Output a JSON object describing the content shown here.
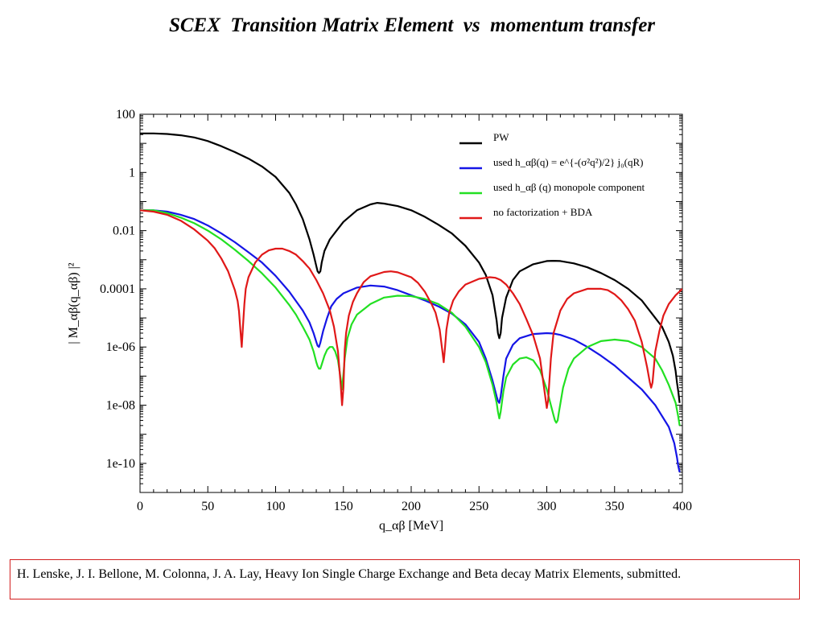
{
  "slide": {
    "title": "SCEX  Transition Matrix Element  vs  momentum transfer",
    "citation": "H. Lenske, J. I. Bellone, M. Colonna, J. A. Lay, Heavy Ion Single Charge Exchange and Beta decay Matrix Elements, submitted."
  },
  "chart_data": {
    "type": "line",
    "title": "",
    "xlabel": "q_αβ [MeV]",
    "ylabel": "| M_αβ(q_αβ) |²",
    "xlim": [
      0,
      400
    ],
    "ylim": [
      1e-11,
      100
    ],
    "yscale": "log",
    "grid": false,
    "legend_position": "top-right",
    "x_ticks": [
      0,
      50,
      100,
      150,
      200,
      250,
      300,
      350,
      400
    ],
    "x_tick_labels": [
      "0",
      "50",
      "100",
      "150",
      "200",
      "250",
      "300",
      "350",
      "400"
    ],
    "y_ticks": [
      100,
      1,
      0.01,
      0.0001,
      1e-06,
      1e-08,
      1e-10
    ],
    "y_tick_labels": [
      "100",
      "1",
      "0.01",
      "0.0001",
      "1e-06",
      "1e-08",
      "1e-10"
    ],
    "series": [
      {
        "name": "PW",
        "color": "#000000",
        "x": [
          0,
          10,
          20,
          30,
          40,
          50,
          60,
          70,
          80,
          90,
          100,
          110,
          115,
          120,
          125,
          128,
          130,
          131,
          132,
          133,
          134,
          136,
          140,
          145,
          150,
          160,
          170,
          175,
          180,
          190,
          200,
          210,
          220,
          230,
          240,
          250,
          255,
          260,
          263,
          264,
          265,
          266,
          267,
          270,
          275,
          280,
          290,
          300,
          305,
          310,
          320,
          330,
          340,
          350,
          360,
          370,
          380,
          385,
          390,
          393,
          395,
          396,
          397,
          398
        ],
        "values": [
          22,
          22,
          21,
          19,
          16,
          12,
          8,
          5,
          3,
          1.6,
          0.7,
          0.2,
          0.08,
          0.025,
          0.005,
          0.0015,
          0.0006,
          0.0004,
          0.00035,
          0.0004,
          0.0008,
          0.002,
          0.005,
          0.01,
          0.02,
          0.05,
          0.08,
          0.09,
          0.085,
          0.07,
          0.05,
          0.03,
          0.016,
          0.008,
          0.003,
          0.0008,
          0.0003,
          6e-05,
          8e-06,
          3e-06,
          2e-06,
          3e-06,
          1e-05,
          5e-05,
          0.0002,
          0.0004,
          0.0007,
          0.0009,
          0.00092,
          0.0009,
          0.00075,
          0.00055,
          0.00035,
          0.0002,
          0.0001,
          4e-05,
          1e-05,
          5e-06,
          1.5e-06,
          5e-07,
          1.5e-07,
          6e-08,
          3e-08,
          1.2e-08
        ]
      },
      {
        "name": "used h_αβ(q) = e^{-(σ²q²)/2} j₀(qR)",
        "color": "#1515e6",
        "x": [
          0,
          10,
          20,
          30,
          40,
          50,
          60,
          70,
          80,
          90,
          100,
          110,
          120,
          125,
          128,
          130,
          131,
          132,
          133,
          135,
          138,
          141,
          145,
          150,
          160,
          170,
          180,
          190,
          200,
          210,
          220,
          230,
          240,
          250,
          255,
          260,
          263,
          264,
          265,
          266,
          268,
          270,
          275,
          280,
          290,
          300,
          305,
          310,
          320,
          330,
          340,
          350,
          360,
          370,
          380,
          390,
          394,
          396,
          397,
          398
        ],
        "values": [
          0.05,
          0.05,
          0.045,
          0.035,
          0.025,
          0.015,
          0.008,
          0.004,
          0.0018,
          0.0008,
          0.00028,
          8e-05,
          1.8e-05,
          7e-06,
          3e-06,
          1.5e-06,
          1.1e-06,
          1e-06,
          1.4e-06,
          3.5e-06,
          1e-05,
          2.5e-05,
          4.5e-05,
          7e-05,
          0.00011,
          0.00013,
          0.00012,
          9e-05,
          6e-05,
          4e-05,
          2.5e-05,
          1.4e-05,
          6e-06,
          1.5e-06,
          4e-07,
          7e-08,
          2e-08,
          1.4e-08,
          1.2e-08,
          2e-08,
          1e-07,
          4e-07,
          1.2e-06,
          2e-06,
          2.8e-06,
          3e-06,
          2.9e-06,
          2.6e-06,
          1.8e-06,
          1e-06,
          5e-07,
          2.3e-07,
          9e-08,
          3.5e-08,
          1e-08,
          1.8e-09,
          5e-10,
          1.6e-10,
          8e-11,
          5e-11
        ]
      },
      {
        "name": "used h_αβ (q) monopole component",
        "color": "#22e022",
        "x": [
          0,
          10,
          20,
          30,
          40,
          50,
          60,
          70,
          80,
          90,
          100,
          110,
          115,
          120,
          125,
          128,
          130,
          131,
          132,
          133,
          134,
          136,
          138,
          140,
          142,
          144,
          146,
          148,
          149,
          150,
          151,
          153,
          156,
          160,
          170,
          180,
          190,
          200,
          210,
          220,
          230,
          240,
          250,
          255,
          260,
          263,
          264,
          265,
          266,
          268,
          270,
          275,
          280,
          285,
          290,
          295,
          300,
          303,
          305,
          306,
          307,
          308,
          309,
          312,
          316,
          320,
          330,
          340,
          350,
          360,
          370,
          380,
          385,
          390,
          395,
          397,
          398
        ],
        "values": [
          0.05,
          0.05,
          0.04,
          0.028,
          0.018,
          0.01,
          0.005,
          0.0022,
          0.0009,
          0.00034,
          0.00011,
          2.8e-05,
          1.3e-05,
          5e-06,
          1.8e-06,
          7e-07,
          3e-07,
          2.2e-07,
          1.8e-07,
          1.8e-07,
          2.5e-07,
          5e-07,
          8e-07,
          1e-06,
          1e-06,
          7e-07,
          3.5e-07,
          8e-08,
          3.5e-08,
          1.2e-07,
          4e-07,
          2e-06,
          6e-06,
          1.3e-05,
          3e-05,
          5e-05,
          5.8e-05,
          5.6e-05,
          4.5e-05,
          3e-05,
          1.5e-05,
          5e-06,
          1e-06,
          3e-07,
          5e-08,
          1.2e-08,
          6e-09,
          3.5e-09,
          6e-09,
          3e-08,
          9e-08,
          2.5e-07,
          4e-07,
          4.4e-07,
          3.5e-07,
          1.6e-07,
          3.5e-08,
          1e-08,
          4.5e-09,
          3e-09,
          2.5e-09,
          3e-09,
          6e-09,
          4e-08,
          1.8e-07,
          4e-07,
          1e-06,
          1.6e-06,
          1.8e-06,
          1.6e-06,
          1e-06,
          4e-07,
          1.6e-07,
          5e-08,
          1.2e-08,
          4e-09,
          2e-09
        ]
      },
      {
        "name": "no factorization + BDA",
        "color": "#e01818",
        "x": [
          0,
          10,
          20,
          30,
          40,
          50,
          55,
          60,
          65,
          70,
          72,
          73,
          74,
          75,
          76,
          77,
          78,
          80,
          85,
          90,
          95,
          100,
          105,
          110,
          115,
          120,
          125,
          130,
          135,
          140,
          143,
          146,
          148,
          149,
          150,
          151,
          152,
          154,
          157,
          160,
          165,
          170,
          180,
          185,
          190,
          200,
          205,
          210,
          215,
          218,
          221,
          223,
          224,
          225,
          226,
          228,
          231,
          235,
          240,
          250,
          258,
          262,
          264,
          266,
          270,
          275,
          280,
          285,
          290,
          295,
          298,
          300,
          301,
          302,
          303,
          305,
          310,
          315,
          320,
          330,
          340,
          345,
          350,
          355,
          360,
          365,
          370,
          374,
          376,
          377,
          378,
          379,
          380,
          383,
          386,
          390,
          395,
          400
        ],
        "values": [
          0.05,
          0.045,
          0.035,
          0.022,
          0.011,
          0.0045,
          0.0025,
          0.0011,
          0.0004,
          9e-05,
          3.8e-05,
          1.7e-05,
          4e-06,
          1e-06,
          6e-06,
          3e-05,
          0.0001,
          0.00025,
          0.0008,
          0.0015,
          0.0021,
          0.0024,
          0.0024,
          0.002,
          0.0015,
          0.0009,
          0.0005,
          0.0002,
          7e-05,
          1.8e-05,
          5e-06,
          7e-07,
          5e-08,
          1e-08,
          4e-08,
          8e-07,
          3e-06,
          1.2e-05,
          3.5e-05,
          7e-05,
          0.00017,
          0.00027,
          0.00038,
          0.0004,
          0.00037,
          0.00025,
          0.00016,
          8e-05,
          3e-05,
          1.5e-05,
          4e-06,
          7e-07,
          3e-07,
          1e-06,
          4e-06,
          1.5e-05,
          4e-05,
          8e-05,
          0.00014,
          0.00022,
          0.00025,
          0.00024,
          0.00022,
          0.0002,
          0.00014,
          7e-05,
          3e-05,
          9e-06,
          2.5e-06,
          4e-07,
          4e-08,
          8e-09,
          1.5e-08,
          8e-08,
          4e-07,
          3e-06,
          1.8e-05,
          4.5e-05,
          7e-05,
          0.0001,
          0.0001,
          9e-05,
          6.5e-05,
          4e-05,
          2e-05,
          8e-06,
          1.5e-06,
          2e-07,
          6e-08,
          4e-08,
          6e-08,
          2e-07,
          7e-07,
          3.5e-06,
          1.2e-05,
          3e-05,
          6e-05,
          0.0001
        ]
      }
    ]
  }
}
